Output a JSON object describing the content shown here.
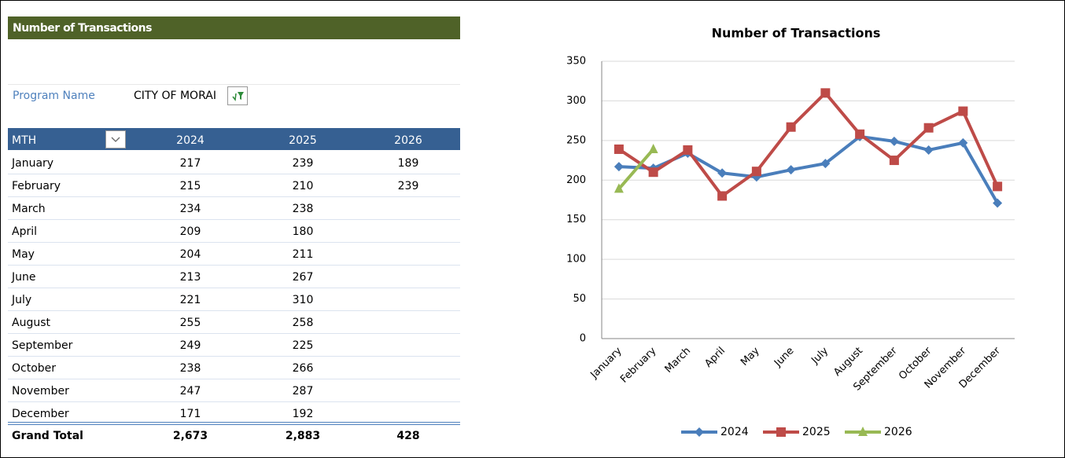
{
  "header": {
    "title": "Number of Transactions"
  },
  "filter": {
    "label": "Program Name",
    "value": "CITY OF MORAI"
  },
  "table": {
    "columns": [
      "MTH",
      "2024",
      "2025",
      "2026"
    ],
    "rows": [
      [
        "January",
        "217",
        "239",
        "189"
      ],
      [
        "February",
        "215",
        "210",
        "239"
      ],
      [
        "March",
        "234",
        "238",
        null
      ],
      [
        "April",
        "209",
        "180",
        null
      ],
      [
        "May",
        "204",
        "211",
        null
      ],
      [
        "June",
        "213",
        "267",
        null
      ],
      [
        "July",
        "221",
        "310",
        null
      ],
      [
        "August",
        "255",
        "258",
        null
      ],
      [
        "September",
        "249",
        "225",
        null
      ],
      [
        "October",
        "238",
        "266",
        null
      ],
      [
        "November",
        "247",
        "287",
        null
      ],
      [
        "December",
        "171",
        "192",
        null
      ]
    ],
    "total": [
      "Grand Total",
      "2,673",
      "2,883",
      "428"
    ]
  },
  "chart_data": {
    "type": "line",
    "title": "Number of Transactions",
    "categories": [
      "January",
      "February",
      "March",
      "April",
      "May",
      "June",
      "July",
      "August",
      "September",
      "October",
      "November",
      "December"
    ],
    "series": [
      {
        "name": "2024",
        "color": "#4a7ebb",
        "marker": "diamond",
        "values": [
          217,
          215,
          234,
          209,
          204,
          213,
          221,
          255,
          249,
          238,
          247,
          171
        ]
      },
      {
        "name": "2025",
        "color": "#be4b48",
        "marker": "square",
        "values": [
          239,
          210,
          238,
          180,
          211,
          267,
          310,
          258,
          225,
          266,
          287,
          192
        ]
      },
      {
        "name": "2026",
        "color": "#98b954",
        "marker": "triangle",
        "values": [
          189,
          239,
          null,
          null,
          null,
          null,
          null,
          null,
          null,
          null,
          null,
          null
        ]
      }
    ],
    "ylim": [
      0,
      350
    ],
    "yticks": [
      0,
      50,
      100,
      150,
      200,
      250,
      300,
      350
    ],
    "grid": true,
    "legend": "bottom"
  }
}
